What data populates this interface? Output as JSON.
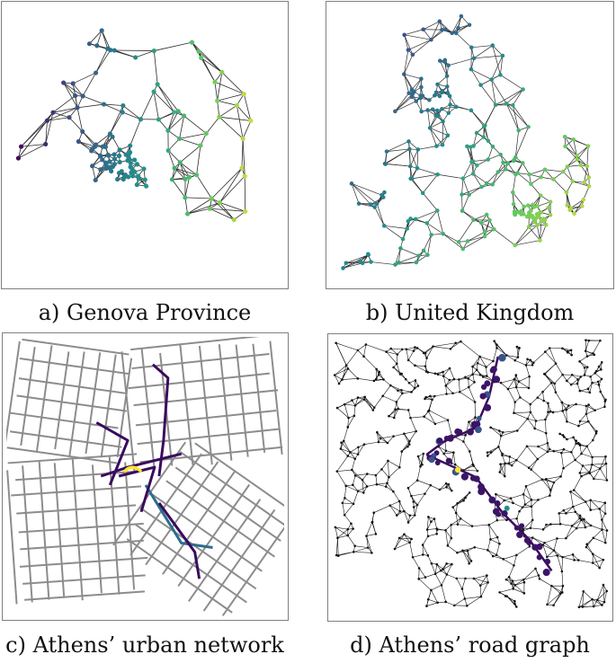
{
  "figure": {
    "panels": [
      {
        "id": "a",
        "caption": "a) Genova Province"
      },
      {
        "id": "b",
        "caption": "b) United Kingdom"
      },
      {
        "id": "c",
        "caption": "c) Athens’ urban network"
      },
      {
        "id": "d",
        "caption": "d) Athens’ road graph"
      }
    ]
  },
  "colors": {
    "edge": "#2b2b2b",
    "street": "#8c8c8c",
    "node_dark": "#111111",
    "viridis": [
      "#440154",
      "#3b528b",
      "#21918c",
      "#5ec962",
      "#fde725"
    ]
  },
  "icons": {
    "a": "triangulated-graph-viridis",
    "b": "triangulated-graph-viridis",
    "c": "street-network-highlighted-route",
    "d": "road-graph-highlighted-nodes"
  }
}
